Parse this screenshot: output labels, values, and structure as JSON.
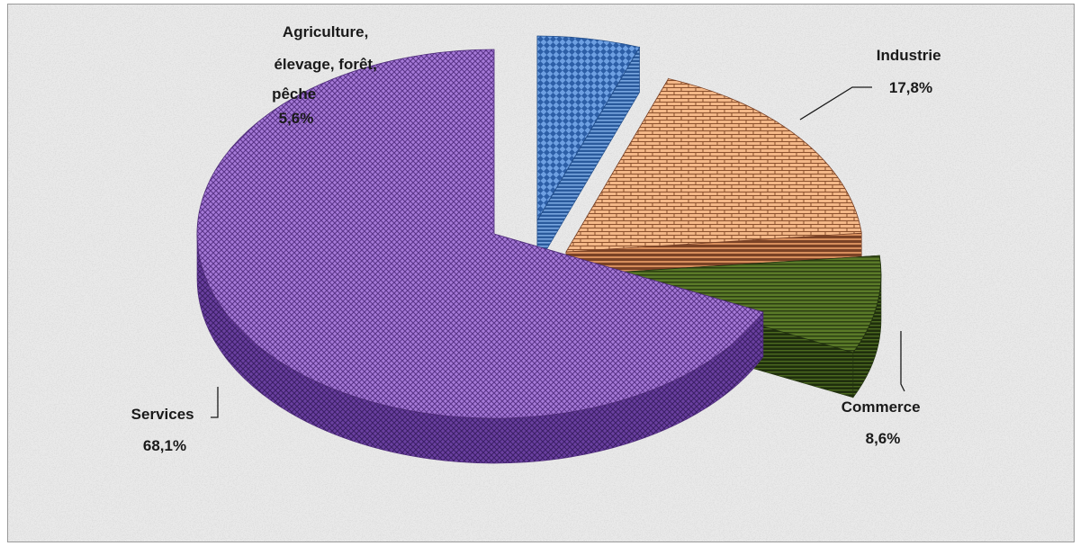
{
  "chart_data": {
    "type": "pie",
    "style": "3d-exploded",
    "slices": [
      {
        "key": "agriculture",
        "label_lines": [
          "Agriculture,",
          "élevage, forêt,",
          "pêche"
        ],
        "value_label": "5,6%",
        "value": 5.6,
        "color": "#5b8fd6",
        "dark": "#1f4a86"
      },
      {
        "key": "industrie",
        "label_lines": [
          "Industrie"
        ],
        "value_label": "17,8%",
        "value": 17.8,
        "color": "#f2b07c",
        "dark": "#7a4226"
      },
      {
        "key": "commerce",
        "label_lines": [
          "Commerce"
        ],
        "value_label": "8,6%",
        "value": 8.6,
        "color": "#4f6f22",
        "dark": "#223210"
      },
      {
        "key": "services",
        "label_lines": [
          "Services"
        ],
        "value_label": "68,1%",
        "value": 68.1,
        "color": "#9a6ccf",
        "dark": "#4e2c78"
      }
    ]
  }
}
